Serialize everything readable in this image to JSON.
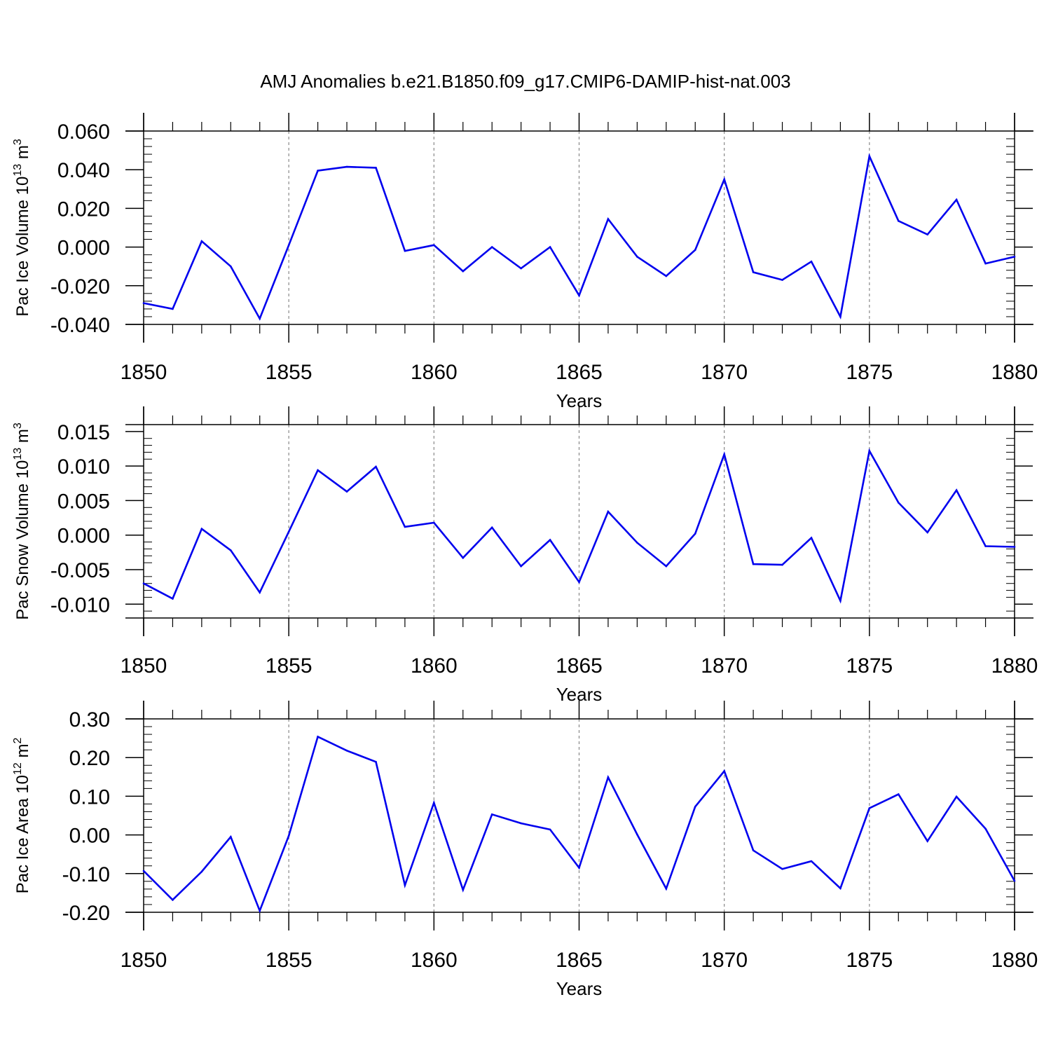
{
  "figure": {
    "title": "AMJ Anomalies b.e21.B1850.f09_g17.CMIP6-DAMIP-hist-nat.003"
  },
  "chart_data": [
    {
      "type": "line",
      "ylabel": "Pac Ice Volume 10",
      "ylabel_exp": "13",
      "ylabel_unit": " m",
      "ylabel_unit_exp": "3",
      "xlabel": "Years",
      "xlim": [
        1850,
        1880
      ],
      "ylim": [
        -0.04,
        0.06
      ],
      "yticks": [
        -0.04,
        -0.02,
        0.0,
        0.02,
        0.04,
        0.06
      ],
      "ytick_labels": [
        "-0.040",
        "-0.020",
        "0.000",
        "0.020",
        "0.040",
        "0.060"
      ],
      "xticks": [
        1850,
        1855,
        1860,
        1865,
        1870,
        1875,
        1880
      ],
      "xtick_labels": [
        "1850",
        "1855",
        "1860",
        "1865",
        "1870",
        "1875",
        "1880"
      ],
      "grid": "vertical dashed at major x ticks",
      "line_color": "#0000ee",
      "x": [
        1850,
        1851,
        1852,
        1853,
        1854,
        1855,
        1856,
        1857,
        1858,
        1859,
        1860,
        1861,
        1862,
        1863,
        1864,
        1865,
        1866,
        1867,
        1868,
        1869,
        1870,
        1871,
        1872,
        1873,
        1874,
        1875,
        1876,
        1877,
        1878,
        1879,
        1880
      ],
      "y": [
        -0.029,
        -0.032,
        0.003,
        -0.01,
        -0.037,
        0.001,
        0.0395,
        0.0415,
        0.041,
        -0.002,
        0.001,
        -0.0125,
        0.0,
        -0.011,
        0.0,
        -0.025,
        0.0145,
        -0.005,
        -0.015,
        -0.0015,
        0.035,
        -0.013,
        -0.017,
        -0.0075,
        -0.036,
        0.047,
        0.0135,
        0.0065,
        0.0245,
        -0.0085,
        -0.005
      ]
    },
    {
      "type": "line",
      "ylabel": "Pac Snow Volume 10",
      "ylabel_exp": "13",
      "ylabel_unit": " m",
      "ylabel_unit_exp": "3",
      "xlabel": "Years",
      "xlim": [
        1850,
        1880
      ],
      "ylim": [
        -0.012,
        0.016
      ],
      "yticks": [
        -0.01,
        -0.005,
        0.0,
        0.005,
        0.01,
        0.015
      ],
      "ytick_labels": [
        "-0.010",
        "-0.005",
        "0.000",
        "0.005",
        "0.010",
        "0.015"
      ],
      "xticks": [
        1850,
        1855,
        1860,
        1865,
        1870,
        1875,
        1880
      ],
      "xtick_labels": [
        "1850",
        "1855",
        "1860",
        "1865",
        "1870",
        "1875",
        "1880"
      ],
      "grid": "vertical dashed at major x ticks",
      "line_color": "#0000ee",
      "x": [
        1850,
        1851,
        1852,
        1853,
        1854,
        1855,
        1856,
        1857,
        1858,
        1859,
        1860,
        1861,
        1862,
        1863,
        1864,
        1865,
        1866,
        1867,
        1868,
        1869,
        1870,
        1871,
        1872,
        1873,
        1874,
        1875,
        1876,
        1877,
        1878,
        1879,
        1880
      ],
      "y": [
        -0.007,
        -0.0092,
        0.0009,
        -0.0022,
        -0.0083,
        0.0005,
        0.0094,
        0.0063,
        0.0099,
        0.0012,
        0.0018,
        -0.0033,
        0.0011,
        -0.0045,
        -0.0007,
        -0.0068,
        0.0034,
        -0.0011,
        -0.0045,
        0.0002,
        0.0117,
        -0.0042,
        -0.0043,
        -0.0004,
        -0.0095,
        0.0122,
        0.0047,
        0.0004,
        0.0065,
        -0.0016,
        -0.0017
      ]
    },
    {
      "type": "line",
      "ylabel": "Pac Ice Area 10",
      "ylabel_exp": "12",
      "ylabel_unit": " m",
      "ylabel_unit_exp": "2",
      "xlabel": "Years",
      "xlim": [
        1850,
        1880
      ],
      "ylim": [
        -0.2,
        0.3
      ],
      "yticks": [
        -0.2,
        -0.1,
        0.0,
        0.1,
        0.2,
        0.3
      ],
      "ytick_labels": [
        "-0.20",
        "-0.10",
        "0.00",
        "0.10",
        "0.20",
        "0.30"
      ],
      "xticks": [
        1850,
        1855,
        1860,
        1865,
        1870,
        1875,
        1880
      ],
      "xtick_labels": [
        "1850",
        "1855",
        "1860",
        "1865",
        "1870",
        "1875",
        "1880"
      ],
      "grid": "vertical dashed at major x ticks",
      "line_color": "#0000ee",
      "x": [
        1850,
        1851,
        1852,
        1853,
        1854,
        1855,
        1856,
        1857,
        1858,
        1859,
        1860,
        1861,
        1862,
        1863,
        1864,
        1865,
        1866,
        1867,
        1868,
        1869,
        1870,
        1871,
        1872,
        1873,
        1874,
        1875,
        1876,
        1877,
        1878,
        1879,
        1880
      ],
      "y": [
        -0.093,
        -0.168,
        -0.095,
        -0.005,
        -0.196,
        -0.002,
        0.254,
        0.218,
        0.189,
        -0.13,
        0.083,
        -0.142,
        0.053,
        0.03,
        0.014,
        -0.085,
        0.149,
        0.001,
        -0.139,
        0.073,
        0.165,
        -0.04,
        -0.088,
        -0.068,
        -0.138,
        0.069,
        0.105,
        -0.016,
        0.099,
        0.016,
        -0.119
      ]
    }
  ]
}
